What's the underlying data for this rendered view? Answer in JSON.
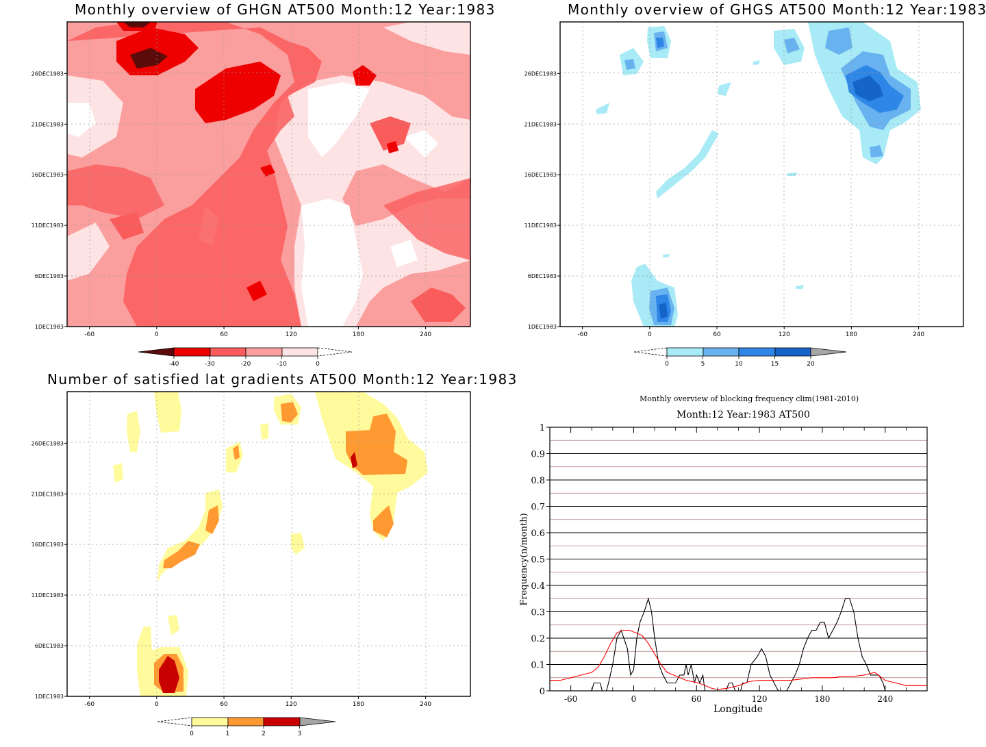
{
  "panels": {
    "ghgn": {
      "title": "Monthly overview of GHGN AT500 Month:12 Year:1983",
      "colorbar_labels": [
        "-40",
        "-30",
        "-20",
        "-10",
        "0"
      ],
      "colorbar_colors": [
        "#5c0b0b",
        "#ee0000",
        "#fa5c5c",
        "#fb9e9e",
        "#fde3e3",
        "#ffffff"
      ]
    },
    "ghgs": {
      "title": "Monthly overview of GHGS AT500 Month:12 Year:1983",
      "colorbar_labels": [
        "0",
        "5",
        "10",
        "15",
        "20"
      ],
      "colorbar_colors": [
        "#ffffff",
        "#a8ebf6",
        "#69b2f0",
        "#2e86e6",
        "#1565c9",
        "#a6a6a6"
      ]
    },
    "gradients": {
      "title": "Number of satisfied lat gradients AT500 Month:12 Year:1983",
      "colorbar_labels": [
        "0",
        "1",
        "2",
        "3"
      ],
      "colorbar_colors": [
        "#ffffff",
        "#fffb9c",
        "#ff9a33",
        "#c80000",
        "#a6a6a6"
      ]
    },
    "frequency": {
      "title_line1": "Monthly overview of blocking frequency clim(1981-2010)",
      "title_line2": "Month:12 Year:1983  AT500"
    }
  },
  "map_axes": {
    "x_ticks": [
      "-60",
      "0",
      "60",
      "120",
      "180",
      "240"
    ],
    "y_ticks": [
      "1DEC1983",
      "6DEC1983",
      "11DEC1983",
      "16DEC1983",
      "21DEC1983",
      "26DEC1983"
    ]
  },
  "chart_data": [
    {
      "type": "heatmap",
      "title": "Monthly overview of GHGN AT500 Month:12 Year:1983",
      "x_ticks": [
        -60,
        0,
        60,
        120,
        180,
        240
      ],
      "xlim": [
        -80,
        280
      ],
      "y_ticks": [
        "1DEC1983",
        "6DEC1983",
        "11DEC1983",
        "16DEC1983",
        "21DEC1983",
        "26DEC1983"
      ],
      "levels": [
        -40,
        -30,
        -20,
        -10,
        0
      ]
    },
    {
      "type": "heatmap",
      "title": "Monthly overview of GHGS AT500 Month:12 Year:1983",
      "x_ticks": [
        -60,
        0,
        60,
        120,
        180,
        240
      ],
      "xlim": [
        -80,
        280
      ],
      "y_ticks": [
        "1DEC1983",
        "6DEC1983",
        "11DEC1983",
        "16DEC1983",
        "21DEC1983",
        "26DEC1983"
      ],
      "levels": [
        0,
        5,
        10,
        15,
        20
      ]
    },
    {
      "type": "heatmap",
      "title": "Number of satisfied lat gradients AT500 Month:12 Year:1983",
      "x_ticks": [
        -60,
        0,
        60,
        120,
        180,
        240
      ],
      "xlim": [
        -80,
        280
      ],
      "y_ticks": [
        "1DEC1983",
        "6DEC1983",
        "11DEC1983",
        "16DEC1983",
        "21DEC1983",
        "26DEC1983"
      ],
      "levels": [
        0,
        1,
        2,
        3
      ]
    },
    {
      "type": "line",
      "title": "Monthly overview of blocking frequency clim(1981-2010)",
      "subtitle": "Month:12 Year:1983  AT500",
      "xlabel": "Longitude",
      "ylabel": "Frequency(n/month)",
      "xlim": [
        -80,
        280
      ],
      "ylim": [
        0,
        1
      ],
      "x_ticks": [
        -60,
        0,
        60,
        120,
        180,
        240
      ],
      "y_ticks": [
        0,
        0.1,
        0.2,
        0.3,
        0.4,
        0.5,
        0.6,
        0.7,
        0.8,
        0.9,
        1
      ],
      "y_tick_labels": [
        "0",
        "0.1",
        "0.2",
        "0.3",
        "0.4",
        "0.5",
        "0.6",
        "0.7",
        "0.8",
        "0.9",
        "1"
      ],
      "grid": true,
      "series": [
        {
          "color": "#000000",
          "points": [
            [
              -40,
              0
            ],
            [
              -38,
              0.03
            ],
            [
              -32,
              0.03
            ],
            [
              -30,
              0
            ],
            [
              -26,
              0
            ],
            [
              -24,
              0.03
            ],
            [
              -20,
              0.1
            ],
            [
              -16,
              0.2
            ],
            [
              -12,
              0.23
            ],
            [
              -6,
              0.16
            ],
            [
              -3,
              0.06
            ],
            [
              0,
              0.08
            ],
            [
              3,
              0.2
            ],
            [
              6,
              0.26
            ],
            [
              10,
              0.3
            ],
            [
              14,
              0.35
            ],
            [
              17,
              0.3
            ],
            [
              20,
              0.2
            ],
            [
              24,
              0.1
            ],
            [
              28,
              0.06
            ],
            [
              32,
              0.03
            ],
            [
              36,
              0.03
            ],
            [
              40,
              0.03
            ],
            [
              44,
              0.06
            ],
            [
              48,
              0.06
            ],
            [
              50,
              0.1
            ],
            [
              52,
              0.06
            ],
            [
              55,
              0.1
            ],
            [
              58,
              0.03
            ],
            [
              60,
              0.06
            ],
            [
              63,
              0.03
            ],
            [
              66,
              0.06
            ],
            [
              68,
              0
            ],
            [
              75,
              0
            ],
            [
              80,
              0
            ],
            [
              88,
              0
            ],
            [
              91,
              0.03
            ],
            [
              94,
              0.03
            ],
            [
              97,
              0
            ],
            [
              102,
              0
            ],
            [
              104,
              0.03
            ],
            [
              108,
              0.03
            ],
            [
              112,
              0.1
            ],
            [
              118,
              0.13
            ],
            [
              122,
              0.16
            ],
            [
              126,
              0.13
            ],
            [
              130,
              0.06
            ],
            [
              134,
              0.03
            ],
            [
              138,
              0
            ],
            [
              146,
              0
            ],
            [
              150,
              0.03
            ],
            [
              154,
              0.06
            ],
            [
              158,
              0.1
            ],
            [
              162,
              0.16
            ],
            [
              166,
              0.2
            ],
            [
              170,
              0.23
            ],
            [
              174,
              0.23
            ],
            [
              178,
              0.26
            ],
            [
              182,
              0.26
            ],
            [
              186,
              0.2
            ],
            [
              190,
              0.23
            ],
            [
              194,
              0.26
            ],
            [
              198,
              0.3
            ],
            [
              202,
              0.35
            ],
            [
              206,
              0.35
            ],
            [
              210,
              0.3
            ],
            [
              214,
              0.2
            ],
            [
              218,
              0.13
            ],
            [
              222,
              0.1
            ],
            [
              226,
              0.06
            ],
            [
              230,
              0.06
            ],
            [
              234,
              0.06
            ],
            [
              238,
              0.03
            ],
            [
              240,
              0
            ]
          ]
        },
        {
          "color": "#ff0000",
          "points": [
            [
              -80,
              0.04
            ],
            [
              -70,
              0.04
            ],
            [
              -60,
              0.05
            ],
            [
              -50,
              0.06
            ],
            [
              -40,
              0.07
            ],
            [
              -34,
              0.09
            ],
            [
              -28,
              0.13
            ],
            [
              -22,
              0.18
            ],
            [
              -16,
              0.22
            ],
            [
              -10,
              0.23
            ],
            [
              -4,
              0.23
            ],
            [
              2,
              0.22
            ],
            [
              8,
              0.21
            ],
            [
              14,
              0.18
            ],
            [
              20,
              0.14
            ],
            [
              26,
              0.1
            ],
            [
              32,
              0.07
            ],
            [
              38,
              0.06
            ],
            [
              44,
              0.05
            ],
            [
              50,
              0.04
            ],
            [
              56,
              0.035
            ],
            [
              62,
              0.03
            ],
            [
              68,
              0.02
            ],
            [
              74,
              0.01
            ],
            [
              80,
              0.005
            ],
            [
              90,
              0.01
            ],
            [
              100,
              0.02
            ],
            [
              110,
              0.035
            ],
            [
              120,
              0.04
            ],
            [
              130,
              0.04
            ],
            [
              140,
              0.04
            ],
            [
              150,
              0.04
            ],
            [
              160,
              0.045
            ],
            [
              170,
              0.05
            ],
            [
              180,
              0.05
            ],
            [
              190,
              0.05
            ],
            [
              200,
              0.055
            ],
            [
              210,
              0.055
            ],
            [
              220,
              0.06
            ],
            [
              230,
              0.07
            ],
            [
              240,
              0.04
            ],
            [
              250,
              0.03
            ],
            [
              260,
              0.02
            ],
            [
              270,
              0.02
            ],
            [
              280,
              0.02
            ]
          ]
        }
      ]
    }
  ]
}
